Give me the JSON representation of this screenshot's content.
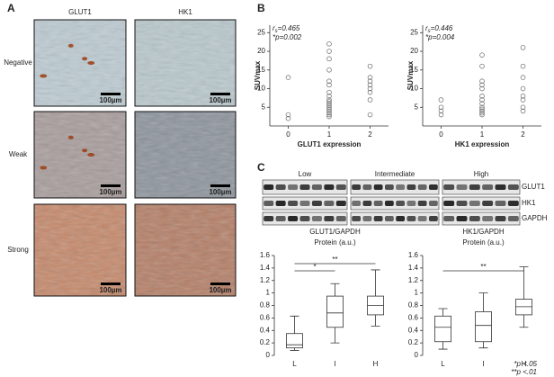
{
  "panel_labels": [
    "A",
    "B",
    "C"
  ],
  "histology": {
    "columns": [
      "GLUT1",
      "HK1"
    ],
    "rows": [
      "Negative",
      "Weak",
      "Strong"
    ],
    "scale_bars": [
      "100µm",
      "100µm",
      "100µm",
      "100µm",
      "100µm",
      "100µm"
    ]
  },
  "blot": {
    "groups": [
      "Low",
      "Intermediate",
      "High"
    ],
    "proteins": [
      "GLUT1",
      "HK1",
      "GAPDH"
    ]
  },
  "chart_data": [
    {
      "type": "scatter",
      "ylabel": "SUVmax",
      "xlabel": "GLUT1 expression",
      "stats": {
        "symbol": "r",
        "subscript": "s",
        "value": "=0.465",
        "p": "*p=0.002"
      },
      "x": [
        0,
        0,
        0,
        1,
        1,
        1,
        1,
        1,
        1,
        1,
        1,
        1,
        1,
        1,
        1,
        1,
        1,
        1,
        1,
        1,
        1,
        2,
        2,
        2,
        2,
        2,
        2,
        2,
        2
      ],
      "values": [
        13,
        3,
        2,
        22,
        20,
        18,
        15,
        12,
        11,
        9,
        8,
        7,
        6.5,
        6,
        5.5,
        5,
        4.5,
        4,
        3.5,
        3,
        2.5,
        16,
        13,
        12,
        11,
        10,
        9,
        7,
        3
      ],
      "color": "#777777",
      "xlim": [
        -0.45,
        2.45
      ],
      "xticks": [
        0,
        1,
        2
      ],
      "ylim": [
        0,
        27
      ],
      "yticks": [
        5,
        10,
        15,
        20,
        25
      ]
    },
    {
      "type": "scatter",
      "ylabel": "SUVmax",
      "xlabel": "HK1 expression",
      "stats": {
        "symbol": "r",
        "subscript": "s",
        "value": "=0.446",
        "p": "*p=0.004"
      },
      "x": [
        0,
        0,
        0,
        0,
        1,
        1,
        1,
        1,
        1,
        1,
        1,
        1,
        1,
        1,
        1,
        1,
        1,
        2,
        2,
        2,
        2,
        2,
        2,
        2,
        2
      ],
      "values": [
        7,
        5,
        4,
        3,
        19,
        16,
        12,
        11,
        10,
        8,
        7,
        6,
        5,
        4.5,
        4,
        3.5,
        3,
        21,
        16,
        13,
        10,
        8,
        7,
        5,
        4
      ],
      "color": "#777777",
      "xlim": [
        -0.45,
        2.45
      ],
      "xticks": [
        0,
        1,
        2
      ],
      "ylim": [
        0,
        27
      ],
      "yticks": [
        5,
        10,
        15,
        20,
        25
      ]
    },
    {
      "type": "box",
      "title": "GLUT1/GAPDH",
      "subtitle": "Protein (a.u.)",
      "categories": [
        "L",
        "I",
        "H"
      ],
      "boxes": [
        {
          "min": 0.08,
          "q1": 0.12,
          "median": 0.17,
          "q3": 0.35,
          "max": 0.63
        },
        {
          "min": 0.2,
          "q1": 0.45,
          "median": 0.68,
          "q3": 0.95,
          "max": 1.15
        },
        {
          "min": 0.47,
          "q1": 0.65,
          "median": 0.8,
          "q3": 0.95,
          "max": 1.37
        }
      ],
      "significance": [
        {
          "label": "*",
          "from": "L",
          "to": "I"
        },
        {
          "label": "**",
          "from": "L",
          "to": "H"
        }
      ],
      "ylim": [
        0,
        1.6
      ],
      "yticks": [
        0,
        0.2,
        0.4,
        0.6,
        0.8,
        1,
        1.2,
        1.4,
        1.6
      ]
    },
    {
      "type": "box",
      "title": "HK1/GAPDH",
      "subtitle": "Protein (a.u.)",
      "categories": [
        "L",
        "I",
        "H"
      ],
      "boxes": [
        {
          "min": 0.1,
          "q1": 0.22,
          "median": 0.45,
          "q3": 0.63,
          "max": 0.75
        },
        {
          "min": 0.12,
          "q1": 0.22,
          "median": 0.48,
          "q3": 0.7,
          "max": 1.0
        },
        {
          "min": 0.45,
          "q1": 0.65,
          "median": 0.78,
          "q3": 0.9,
          "max": 1.42
        }
      ],
      "significance": [
        {
          "label": "**",
          "from": "L",
          "to": "H"
        }
      ],
      "ylim": [
        0,
        1.6
      ],
      "yticks": [
        0,
        0.2,
        0.4,
        0.6,
        0.8,
        1,
        1.2,
        1.4,
        1.6
      ]
    }
  ],
  "footnotes": [
    "*p <.05",
    "**p <.01"
  ]
}
